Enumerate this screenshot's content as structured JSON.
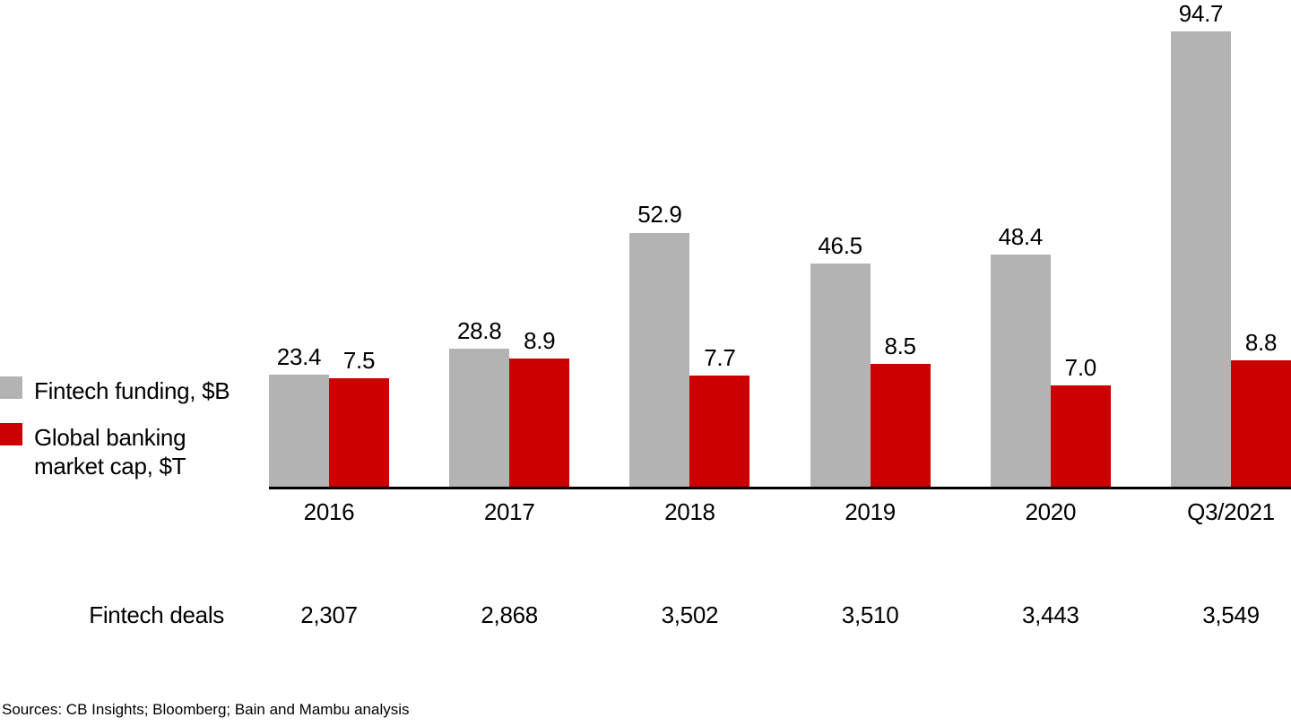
{
  "chart_data": {
    "type": "bar",
    "categories": [
      "2016",
      "2017",
      "2018",
      "2019",
      "2020",
      "Q3/2021"
    ],
    "series": [
      {
        "name": "Fintech funding, $B",
        "color": "#b3b3b3",
        "values": [
          23.4,
          28.8,
          52.9,
          46.5,
          48.4,
          94.7
        ]
      },
      {
        "name": "Global banking market cap, $T",
        "color": "#cc0000",
        "values": [
          7.5,
          8.9,
          7.7,
          8.5,
          7.0,
          8.8
        ]
      }
    ],
    "legend": [
      {
        "label": "Fintech funding, $B",
        "color": "#b3b3b3"
      },
      {
        "label": "Global banking\nmarket cap, $T",
        "color": "#cc0000"
      }
    ],
    "table_row": {
      "label": "Fintech deals",
      "values": [
        "2,307",
        "2,868",
        "3,502",
        "3,510",
        "3,443",
        "3,549"
      ]
    },
    "footer": "Sources: CB Insights; Bloomberg; Bain and Mambu analysis",
    "title": "",
    "xlabel": "",
    "ylabel": "",
    "grid": false,
    "legend_position": "left",
    "value_label_decimals": 1,
    "layout_hints": {
      "dual_independent_scales": true,
      "secondary_series_scale_ratio": 3,
      "baseline_color": "#000000",
      "text_color": "#000000"
    }
  }
}
